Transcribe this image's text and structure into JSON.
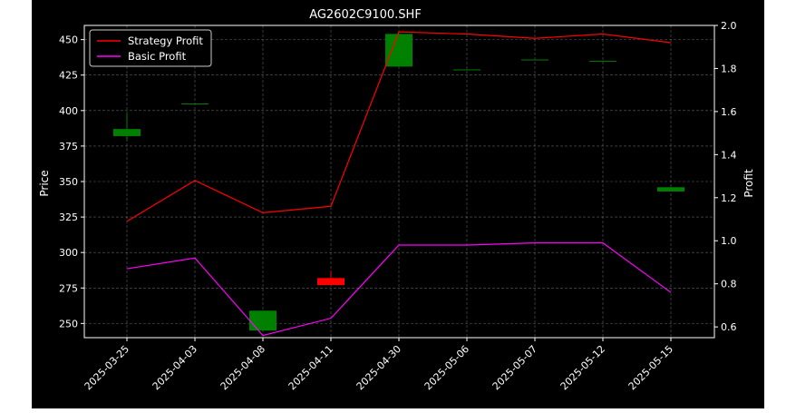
{
  "chart_data": {
    "type": "candlestick+line",
    "title": "AG2602C9100.SHF",
    "ylabel": "Price",
    "y2label": "Profit",
    "categories": [
      "2025-03-25",
      "2025-04-03",
      "2025-04-08",
      "2025-04-11",
      "2025-04-30",
      "2025-05-06",
      "2025-05-07",
      "2025-05-12",
      "2025-05-15"
    ],
    "ylim": [
      240,
      460
    ],
    "y2lim": [
      0.55,
      2.0
    ],
    "yticks": [
      250,
      275,
      300,
      325,
      350,
      375,
      400,
      425,
      450
    ],
    "y2ticks": [
      0.6,
      0.8,
      1.0,
      1.2,
      1.4,
      1.6,
      1.8,
      2.0
    ],
    "candles": [
      {
        "open": 382,
        "close": 387,
        "high": 398,
        "low": 379
      },
      {
        "open": 405,
        "close": 405,
        "high": 405,
        "low": 405
      },
      {
        "open": 245,
        "close": 259,
        "high": 259,
        "low": 245
      },
      {
        "open": 282,
        "close": 277,
        "high": 287,
        "low": 277
      },
      {
        "open": 431,
        "close": 454,
        "high": 454,
        "low": 431
      },
      {
        "open": 429,
        "close": 429,
        "high": 429,
        "low": 429
      },
      {
        "open": 436,
        "close": 436,
        "high": 436,
        "low": 436
      },
      {
        "open": 435,
        "close": 435,
        "high": 435,
        "low": 435
      },
      {
        "open": 343,
        "close": 346,
        "high": 346,
        "low": 343
      }
    ],
    "series": [
      {
        "name": "Strategy Profit",
        "color": "#ff0000",
        "values": [
          1.09,
          1.28,
          1.13,
          1.16,
          1.97,
          1.96,
          1.94,
          1.96,
          1.92
        ]
      },
      {
        "name": "Basic Profit",
        "color": "#ff00ff",
        "values": [
          0.87,
          0.92,
          0.56,
          0.64,
          0.98,
          0.98,
          0.99,
          0.99,
          0.76
        ]
      }
    ],
    "candle_colors": {
      "up": "#008000",
      "down": "#ff0000"
    },
    "legend_position": "top-left",
    "grid": true
  }
}
